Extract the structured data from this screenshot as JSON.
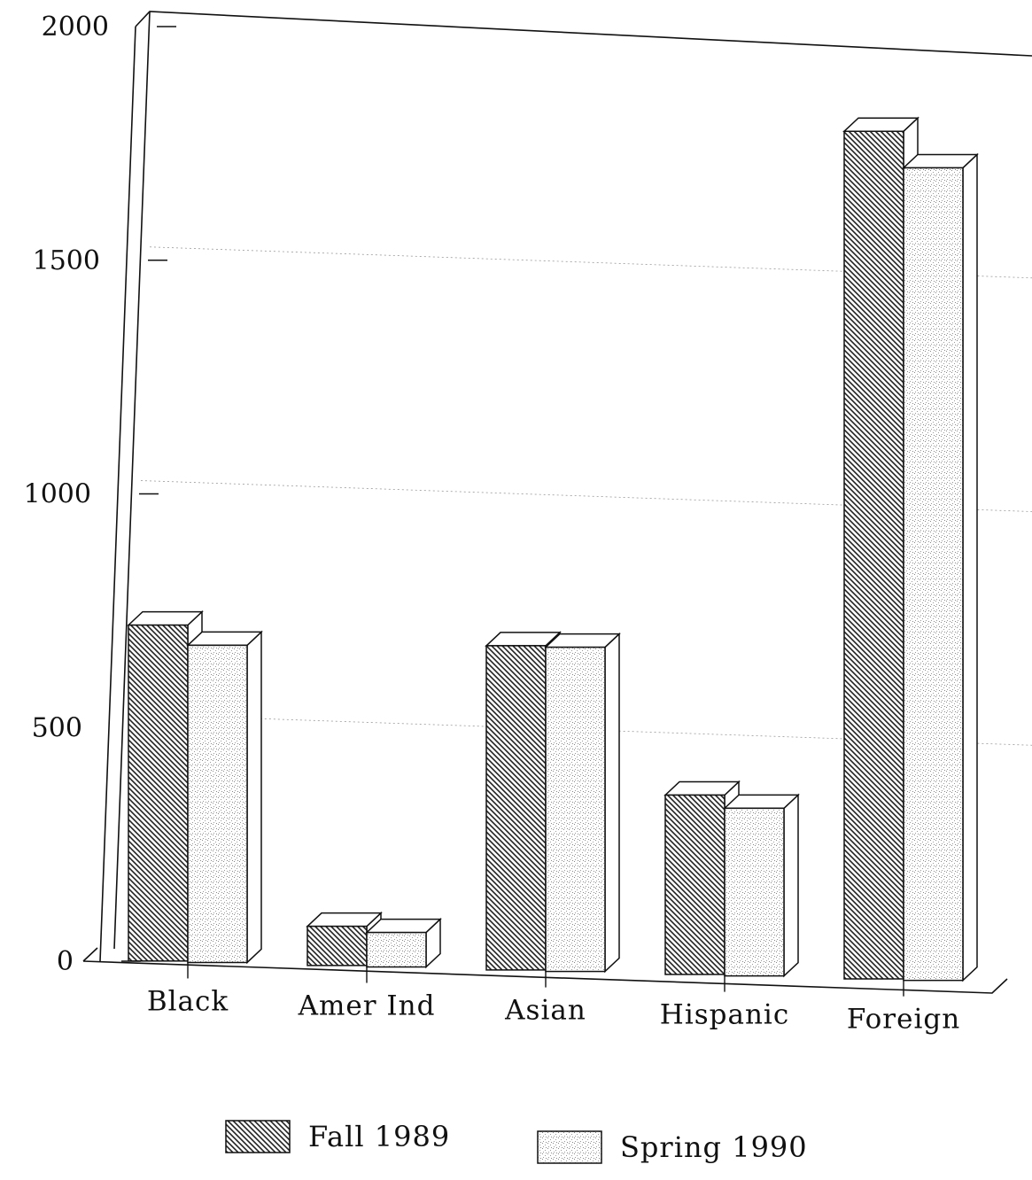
{
  "chart_data": {
    "type": "bar",
    "title": "",
    "xlabel": "",
    "ylabel": "",
    "ylim": [
      0,
      2000
    ],
    "yticks": [
      0,
      500,
      1000,
      1500,
      2000
    ],
    "ytick_labels": [
      "0",
      "500",
      "1000",
      "1500",
      "2000"
    ],
    "categories": [
      "Black",
      "Amer Ind",
      "Asian",
      "Hispanic",
      "Foreign"
    ],
    "series": [
      {
        "name": "Fall 1989",
        "values": [
          715,
          80,
          690,
          380,
          1810
        ],
        "pattern": "diagonal-hatch"
      },
      {
        "name": "Spring 1990",
        "values": [
          675,
          70,
          690,
          355,
          1735
        ],
        "pattern": "stipple"
      }
    ],
    "grid": true,
    "legend_position": "bottom-center",
    "style": "3d-bar"
  }
}
